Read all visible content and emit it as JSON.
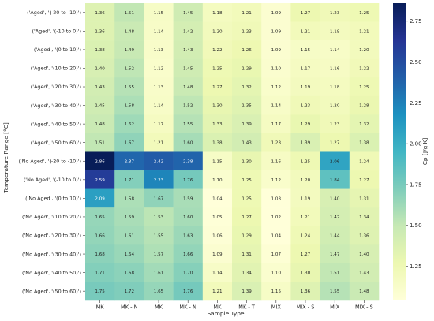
{
  "chart_data": {
    "type": "heatmap",
    "xlabel": "Sample Type",
    "ylabel": "Temperature Range [°C]",
    "colorbar_label": "Cp [J/g·K]",
    "colorbar_range": [
      1.04,
      2.86
    ],
    "colorbar_ticks": [
      "1.25",
      "1.50",
      "1.75",
      "2.00",
      "2.25",
      "2.50",
      "2.75"
    ],
    "colormap": [
      "#ffffd9",
      "#edf8b1",
      "#c7e9b4",
      "#7fcdbb",
      "#41b6c4",
      "#1d91c0",
      "#225ea8",
      "#253494",
      "#081d58"
    ],
    "x_categories": [
      "MK",
      "MK - N",
      "MK",
      "MK - N",
      "MK",
      "MK - T",
      "MIX",
      "MIX - S",
      "MIX",
      "MIX - S"
    ],
    "y_categories": [
      "('Aged', '(-20 to -10)')",
      "('Aged', '(-10 to 0)')",
      "('Aged', '(0 to 10)')",
      "('Aged', '(10 to 20)')",
      "('Aged', '(20 to 30)')",
      "('Aged', '(30 to 40)')",
      "('Aged', '(40 to 50)')",
      "('Aged', '(50 to 60)')",
      "('No Aged', '(-20 to -10)')",
      "('No Aged', '(-10 to 0)')",
      "('No Aged', '(0 to 10)')",
      "('No Aged', '(10 to 20)')",
      "('No Aged', '(20 to 30)')",
      "('No Aged', '(30 to 40)')",
      "('No Aged', '(40 to 50)')",
      "('No Aged', '(50 to 60)')"
    ],
    "values": [
      [
        1.36,
        1.51,
        1.15,
        1.45,
        1.18,
        1.21,
        1.09,
        1.27,
        1.23,
        1.25
      ],
      [
        1.36,
        1.48,
        1.14,
        1.42,
        1.2,
        1.23,
        1.09,
        1.21,
        1.19,
        1.21
      ],
      [
        1.38,
        1.49,
        1.13,
        1.43,
        1.22,
        1.26,
        1.09,
        1.15,
        1.14,
        1.2
      ],
      [
        1.4,
        1.52,
        1.12,
        1.45,
        1.25,
        1.29,
        1.1,
        1.17,
        1.16,
        1.22
      ],
      [
        1.43,
        1.55,
        1.13,
        1.48,
        1.27,
        1.32,
        1.12,
        1.19,
        1.18,
        1.25
      ],
      [
        1.45,
        1.58,
        1.14,
        1.52,
        1.3,
        1.35,
        1.14,
        1.23,
        1.2,
        1.28
      ],
      [
        1.48,
        1.62,
        1.17,
        1.55,
        1.33,
        1.39,
        1.17,
        1.29,
        1.23,
        1.32
      ],
      [
        1.51,
        1.67,
        1.21,
        1.6,
        1.38,
        1.43,
        1.23,
        1.39,
        1.27,
        1.38
      ],
      [
        2.86,
        2.37,
        2.42,
        2.38,
        1.15,
        1.3,
        1.16,
        1.25,
        2.06,
        1.24
      ],
      [
        2.59,
        1.71,
        2.23,
        1.76,
        1.1,
        1.25,
        1.12,
        1.2,
        1.84,
        1.27
      ],
      [
        2.09,
        1.58,
        1.67,
        1.59,
        1.04,
        1.25,
        1.03,
        1.19,
        1.4,
        1.31
      ],
      [
        1.65,
        1.59,
        1.53,
        1.6,
        1.05,
        1.27,
        1.02,
        1.21,
        1.42,
        1.34
      ],
      [
        1.66,
        1.61,
        1.55,
        1.63,
        1.06,
        1.29,
        1.04,
        1.24,
        1.44,
        1.36
      ],
      [
        1.68,
        1.64,
        1.57,
        1.66,
        1.09,
        1.31,
        1.07,
        1.27,
        1.47,
        1.4
      ],
      [
        1.71,
        1.68,
        1.61,
        1.7,
        1.14,
        1.34,
        1.1,
        1.3,
        1.51,
        1.43
      ],
      [
        1.75,
        1.72,
        1.65,
        1.76,
        1.21,
        1.39,
        1.15,
        1.36,
        1.55,
        1.48
      ]
    ]
  }
}
